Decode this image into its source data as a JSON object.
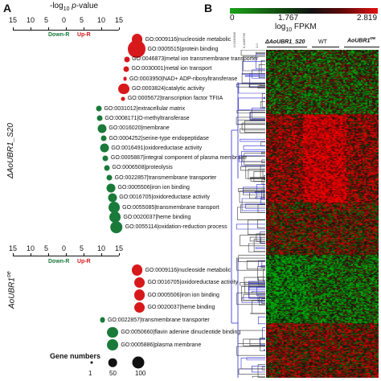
{
  "panel_a": {
    "letter": "A",
    "axis_title": "-log10 p-value",
    "ticks": [
      "15",
      "10",
      "5",
      "0",
      "5",
      "10",
      "15"
    ],
    "down_label": "Down-R",
    "up_label": "Up-R",
    "groups": [
      {
        "name": "ΔAoUBR1_S20",
        "terms": [
          {
            "label": "GO:0009116|nucleoside metabolic",
            "value": 10.5,
            "size": 40,
            "color": "#d7191c"
          },
          {
            "label": "GO:0005515|protein binding",
            "value": 10.2,
            "size": 100,
            "color": "#d7191c"
          },
          {
            "label": "GO:0046873|metal ion transmembrane transporter",
            "value": 6.2,
            "size": 10,
            "color": "#d7191c"
          },
          {
            "label": "GO:0030001|metal ion transport",
            "value": 6.0,
            "size": 10,
            "color": "#d7191c"
          },
          {
            "label": "GO:0003950|NAD+ ADP-ribosyltransferase",
            "value": 5.5,
            "size": 5,
            "color": "#d7191c"
          },
          {
            "label": "GO:0003824|catalytic activity",
            "value": 5.0,
            "size": 40,
            "color": "#d7191c"
          },
          {
            "label": "GO:0005672|transcription factor TFIIA",
            "value": 4.8,
            "size": 5,
            "color": "#d7191c"
          },
          {
            "label": "GO:0031012|extracellular matrix",
            "value": 3.0,
            "size": 10,
            "color": "#1a7a3a"
          },
          {
            "label": "GO:0008171|O-methyltransferase",
            "value": 3.3,
            "size": 10,
            "color": "#1a7a3a"
          },
          {
            "label": "GO:0016020|membrane",
            "value": 4.3,
            "size": 25,
            "color": "#1a7a3a"
          },
          {
            "label": "GO:0004252|serine-type endopeptidase",
            "value": 5.0,
            "size": 10,
            "color": "#1a7a3a"
          },
          {
            "label": "GO:0016491|oxidoreductase activity",
            "value": 5.3,
            "size": 25,
            "color": "#1a7a3a"
          },
          {
            "label": "GO:0005887|integral component of plasma membrane",
            "value": 5.8,
            "size": 10,
            "color": "#1a7a3a"
          },
          {
            "label": "GO:0006508|proteolysis",
            "value": 6.3,
            "size": 10,
            "color": "#1a7a3a"
          },
          {
            "label": "GO:0022857|transmembrane transporter",
            "value": 7.4,
            "size": 10,
            "color": "#1a7a3a"
          },
          {
            "label": "GO:0005506|iron ion binding",
            "value": 8.0,
            "size": 25,
            "color": "#1a7a3a"
          },
          {
            "label": "GO:0016705|oxidoreductase activity",
            "value": 8.6,
            "size": 25,
            "color": "#1a7a3a"
          },
          {
            "label": "GO:0055085|transmembrane transport",
            "value": 9.4,
            "size": 40,
            "color": "#1a7a3a"
          },
          {
            "label": "GO:0020037|heme binding",
            "value": 9.8,
            "size": 40,
            "color": "#1a7a3a"
          },
          {
            "label": "GO:0055114|oxidation-reduction process",
            "value": 10.3,
            "size": 50,
            "color": "#1a7a3a"
          }
        ]
      },
      {
        "name": "AoUBR1oe",
        "terms": [
          {
            "label": "GO:0009116|nucleoside metabolic",
            "value": 10.5,
            "size": 40,
            "color": "#d7191c"
          },
          {
            "label": "GO:0016705|oxidoreductase activity",
            "value": 11.5,
            "size": 40,
            "color": "#d7191c"
          },
          {
            "label": "GO:0005506|iron ion binding",
            "value": 11.5,
            "size": 40,
            "color": "#d7191c"
          },
          {
            "label": "GO:0020037|heme binding",
            "value": 11.5,
            "size": 40,
            "color": "#d7191c"
          },
          {
            "label": "GO:0022857|transmembrane transporter",
            "value": 4.5,
            "size": 10,
            "color": "#1a7a3a"
          },
          {
            "label": "GO:0050660|flavin adenine dinucleotide binding",
            "value": 8.8,
            "size": 40,
            "color": "#1a7a3a"
          },
          {
            "label": "GO:0005886|plasma membrane",
            "value": 8.8,
            "size": 40,
            "color": "#1a7a3a"
          }
        ]
      }
    ],
    "legend_title": "Gene numbers",
    "legend": [
      {
        "label": "1",
        "size": 1
      },
      {
        "label": "50",
        "size": 50
      },
      {
        "label": "100",
        "size": 100
      }
    ],
    "colors": {
      "up": "#d7191c",
      "down": "#1a7a3a"
    }
  },
  "panel_b": {
    "letter": "B",
    "colorbar_min": "0",
    "colorbar_mid": "1.767",
    "colorbar_max": "2.819",
    "colorbar_title": "log10 FPKM",
    "colors": {
      "low": "#1aa31a",
      "mid": "#111111",
      "high": "#e01010"
    },
    "tiny_labels": [
      "-0.1639645",
      "0.4469795",
      "1.0"
    ],
    "groups": [
      "ΔAoUBR1_S20",
      "WT",
      "AoUBR1oe"
    ]
  }
}
